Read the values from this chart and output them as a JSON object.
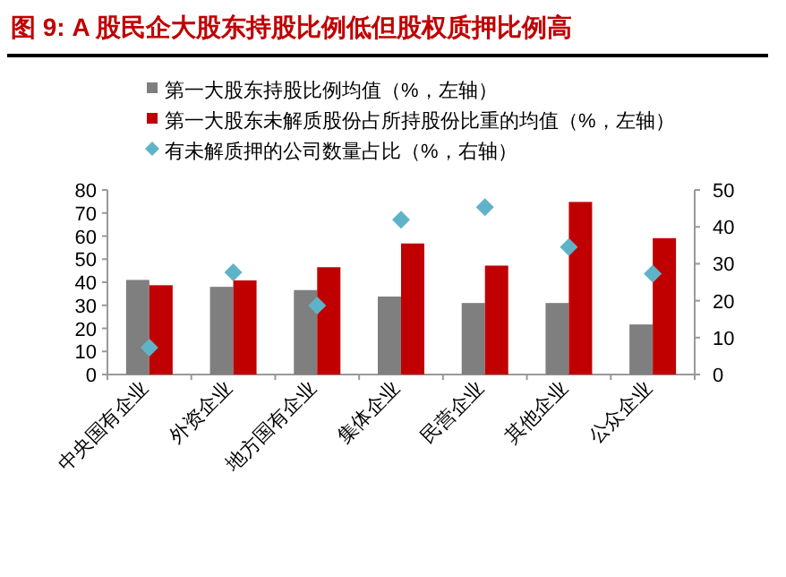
{
  "chart_data": {
    "type": "bar",
    "title": "图 9: A 股民企大股东持股比例低但股权质押比例高",
    "categories": [
      "中央国有企业",
      "外资企业",
      "地方国有企业",
      "集体企业",
      "民营企业",
      "其他企业",
      "公众企业"
    ],
    "series": [
      {
        "name": "第一大股东持股比例均值（%，左轴）",
        "color": "#7f7f7f",
        "values": [
          41,
          38,
          36.6,
          33.8,
          31,
          31,
          21.7
        ]
      },
      {
        "name": "第一大股东未解质股份占所持股份比重的均值（%，左轴）",
        "color": "#c00000",
        "values": [
          38.7,
          40.8,
          46.5,
          56.8,
          47.2,
          74.8,
          59.1
        ]
      },
      {
        "name": "有未解质押的公司数量占比（%，右轴）",
        "color": "#5fb3c8",
        "type": "scatter",
        "axis": "y2",
        "marker": "diamond",
        "values": [
          7.3,
          27.7,
          18.7,
          41.9,
          45.3,
          34.5,
          27.3
        ]
      }
    ],
    "ylim": [
      0,
      80
    ],
    "yticks": [
      0,
      10,
      20,
      30,
      40,
      50,
      60,
      70,
      80
    ],
    "y2lim": [
      0,
      50
    ],
    "y2ticks": [
      0,
      10,
      20,
      30,
      40,
      50
    ],
    "legend": "top",
    "grid": false
  }
}
